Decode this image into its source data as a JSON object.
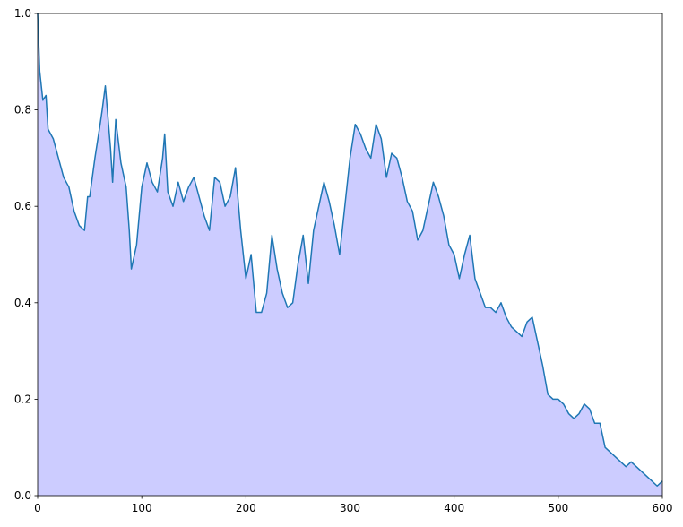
{
  "chart_data": {
    "type": "area",
    "x": [
      0,
      2,
      5,
      8,
      10,
      15,
      20,
      25,
      30,
      35,
      40,
      45,
      48,
      50,
      55,
      60,
      62,
      65,
      70,
      72,
      75,
      80,
      85,
      88,
      90,
      95,
      100,
      105,
      110,
      115,
      120,
      122,
      125,
      130,
      135,
      140,
      145,
      150,
      155,
      160,
      165,
      170,
      175,
      180,
      185,
      190,
      193,
      195,
      200,
      205,
      210,
      215,
      220,
      225,
      230,
      235,
      240,
      245,
      250,
      255,
      260,
      265,
      270,
      275,
      280,
      285,
      290,
      295,
      300,
      305,
      310,
      315,
      320,
      325,
      330,
      335,
      340,
      345,
      350,
      355,
      360,
      365,
      370,
      375,
      380,
      385,
      390,
      395,
      400,
      405,
      410,
      415,
      420,
      425,
      430,
      435,
      440,
      445,
      450,
      455,
      460,
      465,
      470,
      475,
      480,
      485,
      490,
      495,
      500,
      505,
      510,
      515,
      520,
      525,
      530,
      535,
      540,
      545,
      550,
      555,
      560,
      565,
      570,
      575,
      580,
      585,
      590,
      595,
      600
    ],
    "series": [
      {
        "color": "#1f77b4",
        "fill": "#ccccff",
        "values": [
          1.0,
          0.88,
          0.82,
          0.83,
          0.76,
          0.74,
          0.7,
          0.66,
          0.64,
          0.59,
          0.56,
          0.55,
          0.62,
          0.62,
          0.7,
          0.77,
          0.8,
          0.85,
          0.72,
          0.65,
          0.78,
          0.69,
          0.64,
          0.55,
          0.47,
          0.52,
          0.64,
          0.69,
          0.65,
          0.63,
          0.7,
          0.75,
          0.63,
          0.6,
          0.65,
          0.61,
          0.64,
          0.66,
          0.62,
          0.58,
          0.55,
          0.66,
          0.65,
          0.6,
          0.62,
          0.68,
          0.6,
          0.55,
          0.45,
          0.5,
          0.38,
          0.38,
          0.42,
          0.54,
          0.47,
          0.42,
          0.39,
          0.4,
          0.48,
          0.54,
          0.44,
          0.55,
          0.6,
          0.65,
          0.61,
          0.56,
          0.5,
          0.6,
          0.7,
          0.77,
          0.75,
          0.72,
          0.7,
          0.77,
          0.74,
          0.66,
          0.71,
          0.7,
          0.66,
          0.61,
          0.59,
          0.53,
          0.55,
          0.6,
          0.65,
          0.62,
          0.58,
          0.52,
          0.5,
          0.45,
          0.5,
          0.54,
          0.45,
          0.42,
          0.39,
          0.39,
          0.38,
          0.4,
          0.37,
          0.35,
          0.34,
          0.33,
          0.36,
          0.37,
          0.32,
          0.27,
          0.21,
          0.2,
          0.2,
          0.19,
          0.17,
          0.16,
          0.17,
          0.19,
          0.18,
          0.15,
          0.15,
          0.1,
          0.09,
          0.08,
          0.07,
          0.06,
          0.07,
          0.06,
          0.05,
          0.04,
          0.03,
          0.02,
          0.03
        ]
      }
    ],
    "xlim": [
      0,
      600
    ],
    "xticks": [
      0,
      100,
      200,
      300,
      400,
      500,
      600
    ],
    "ylim": [
      0,
      1
    ],
    "yticks": [
      {
        "value": 0,
        "label": "0.0"
      },
      0.2,
      0.4,
      0.6,
      0.8,
      {
        "value": 1,
        "label": "1.0"
      }
    ]
  }
}
